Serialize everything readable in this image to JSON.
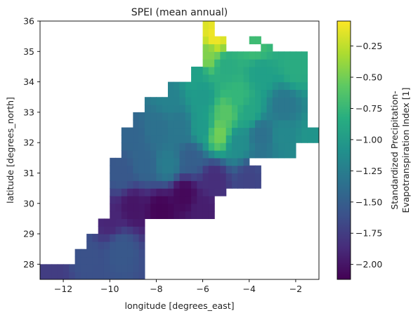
{
  "chart_data": {
    "type": "heatmap",
    "title": "SPEI (mean annual)",
    "xlabel": "longitude [degrees_east]",
    "ylabel": "latitude [degrees_north]",
    "colorbar_label_line1": "Standardized Precipitation-",
    "colorbar_label_line2": "Evapotranspiration Index [1]",
    "colormap": "viridis",
    "xlim": [
      -13,
      -1
    ],
    "ylim": [
      27.5,
      36
    ],
    "clim": [
      -2.12,
      -0.05
    ],
    "xticks": [
      -12,
      -10,
      -8,
      -6,
      -4,
      -2
    ],
    "xtick_labels": [
      "−12",
      "−10",
      "−8",
      "−6",
      "−4",
      "−2"
    ],
    "yticks": [
      28,
      29,
      30,
      31,
      32,
      33,
      34,
      35,
      36
    ],
    "ytick_labels": [
      "28",
      "29",
      "30",
      "31",
      "32",
      "33",
      "34",
      "35",
      "36"
    ],
    "cticks": [
      -2.0,
      -1.75,
      -1.5,
      -1.25,
      -1.0,
      -0.75,
      -0.5,
      -0.25
    ],
    "ctick_labels": [
      "−2.00",
      "−1.75",
      "−1.50",
      "−1.25",
      "−1.00",
      "−0.75",
      "−0.50",
      "−0.25"
    ],
    "grid": {
      "lon_start": -13.0,
      "lat_start": 27.5,
      "step": 0.25,
      "rows": [
        {
          "lat0": 27.5,
          "lon_ranges": [
            [
              -13.0,
              -8.5
            ]
          ]
        },
        {
          "lat0": 27.75,
          "lon_ranges": [
            [
              -13.0,
              -8.5
            ]
          ]
        },
        {
          "lat0": 28.0,
          "lon_ranges": [
            [
              -11.5,
              -8.5
            ]
          ]
        },
        {
          "lat0": 28.25,
          "lon_ranges": [
            [
              -11.5,
              -8.5
            ]
          ]
        },
        {
          "lat0": 28.5,
          "lon_ranges": [
            [
              -11.0,
              -8.5
            ]
          ]
        },
        {
          "lat0": 28.75,
          "lon_ranges": [
            [
              -11.0,
              -8.5
            ]
          ]
        },
        {
          "lat0": 29.0,
          "lon_ranges": [
            [
              -10.5,
              -8.5
            ]
          ]
        },
        {
          "lat0": 29.25,
          "lon_ranges": [
            [
              -10.5,
              -8.5
            ]
          ]
        },
        {
          "lat0": 29.5,
          "lon_ranges": [
            [
              -10.0,
              -5.5
            ]
          ]
        },
        {
          "lat0": 29.75,
          "lon_ranges": [
            [
              -10.0,
              -5.5
            ]
          ]
        },
        {
          "lat0": 30.0,
          "lon_ranges": [
            [
              -10.0,
              -5.5
            ]
          ]
        },
        {
          "lat0": 30.25,
          "lon_ranges": [
            [
              -10.0,
              -5.0
            ]
          ]
        },
        {
          "lat0": 30.5,
          "lon_ranges": [
            [
              -10.0,
              -3.5
            ]
          ]
        },
        {
          "lat0": 30.75,
          "lon_ranges": [
            [
              -10.0,
              -3.5
            ]
          ]
        },
        {
          "lat0": 31.0,
          "lon_ranges": [
            [
              -10.0,
              -3.5
            ]
          ]
        },
        {
          "lat0": 31.25,
          "lon_ranges": [
            [
              -10.0,
              -4.0
            ]
          ]
        },
        {
          "lat0": 31.5,
          "lon_ranges": [
            [
              -9.5,
              -2.0
            ]
          ]
        },
        {
          "lat0": 31.75,
          "lon_ranges": [
            [
              -9.5,
              -2.0
            ]
          ]
        },
        {
          "lat0": 32.0,
          "lon_ranges": [
            [
              -9.5,
              -1.0
            ]
          ]
        },
        {
          "lat0": 32.25,
          "lon_ranges": [
            [
              -9.5,
              -1.0
            ]
          ]
        },
        {
          "lat0": 32.5,
          "lon_ranges": [
            [
              -9.0,
              -1.5
            ]
          ]
        },
        {
          "lat0": 32.75,
          "lon_ranges": [
            [
              -9.0,
              -1.5
            ]
          ]
        },
        {
          "lat0": 33.0,
          "lon_ranges": [
            [
              -8.5,
              -1.5
            ]
          ]
        },
        {
          "lat0": 33.25,
          "lon_ranges": [
            [
              -8.5,
              -1.5
            ]
          ]
        },
        {
          "lat0": 33.5,
          "lon_ranges": [
            [
              -7.5,
              -1.5
            ]
          ]
        },
        {
          "lat0": 33.75,
          "lon_ranges": [
            [
              -7.5,
              -1.5
            ]
          ]
        },
        {
          "lat0": 34.0,
          "lon_ranges": [
            [
              -6.5,
              -1.5
            ]
          ]
        },
        {
          "lat0": 34.25,
          "lon_ranges": [
            [
              -6.5,
              -1.5
            ]
          ]
        },
        {
          "lat0": 34.5,
          "lon_ranges": [
            [
              -6.0,
              -1.5
            ]
          ]
        },
        {
          "lat0": 34.75,
          "lon_ranges": [
            [
              -6.0,
              -1.5
            ]
          ]
        },
        {
          "lat0": 35.0,
          "lon_ranges": [
            [
              -6.0,
              -5.0
            ],
            [
              -3.5,
              -3.0
            ]
          ]
        },
        {
          "lat0": 35.25,
          "lon_ranges": [
            [
              -6.0,
              -5.0
            ],
            [
              -4.0,
              -3.5
            ]
          ]
        },
        {
          "lat0": 35.5,
          "lon_ranges": [
            [
              -6.0,
              -5.5
            ]
          ]
        },
        {
          "lat0": 35.75,
          "lon_ranges": [
            [
              -6.0,
              -5.5
            ]
          ]
        }
      ],
      "value_anchors": [
        {
          "lon": -12.5,
          "lat": 27.75,
          "v": -1.75
        },
        {
          "lon": -11.0,
          "lat": 28.25,
          "v": -1.6
        },
        {
          "lon": -9.5,
          "lat": 28.5,
          "v": -1.55
        },
        {
          "lon": -10.0,
          "lat": 29.5,
          "v": -1.9
        },
        {
          "lon": -9.0,
          "lat": 29.9,
          "v": -2.0
        },
        {
          "lon": -7.8,
          "lat": 29.8,
          "v": -2.1
        },
        {
          "lon": -6.8,
          "lat": 30.3,
          "v": -2.08
        },
        {
          "lon": -6.0,
          "lat": 29.8,
          "v": -1.95
        },
        {
          "lon": -5.5,
          "lat": 30.8,
          "v": -1.85
        },
        {
          "lon": -4.0,
          "lat": 30.8,
          "v": -1.7
        },
        {
          "lon": -9.5,
          "lat": 31.0,
          "v": -1.55
        },
        {
          "lon": -8.5,
          "lat": 31.3,
          "v": -1.45
        },
        {
          "lon": -7.5,
          "lat": 31.3,
          "v": -1.25
        },
        {
          "lon": -6.5,
          "lat": 31.5,
          "v": -1.5
        },
        {
          "lon": -9.0,
          "lat": 32.3,
          "v": -1.45
        },
        {
          "lon": -8.0,
          "lat": 32.5,
          "v": -1.35
        },
        {
          "lon": -7.0,
          "lat": 32.5,
          "v": -1.3
        },
        {
          "lon": -6.0,
          "lat": 32.5,
          "v": -1.0
        },
        {
          "lon": -5.3,
          "lat": 32.3,
          "v": -0.5
        },
        {
          "lon": -4.5,
          "lat": 32.0,
          "v": -1.1
        },
        {
          "lon": -3.5,
          "lat": 32.3,
          "v": -1.35
        },
        {
          "lon": -2.5,
          "lat": 32.3,
          "v": -1.15
        },
        {
          "lon": -1.3,
          "lat": 32.2,
          "v": -1.05
        },
        {
          "lon": -5.0,
          "lat": 33.0,
          "v": -0.6
        },
        {
          "lon": -4.0,
          "lat": 33.0,
          "v": -0.9
        },
        {
          "lon": -2.5,
          "lat": 33.2,
          "v": -1.3
        },
        {
          "lon": -7.5,
          "lat": 33.5,
          "v": -1.2
        },
        {
          "lon": -6.0,
          "lat": 33.5,
          "v": -1.0
        },
        {
          "lon": -4.5,
          "lat": 33.5,
          "v": -0.75
        },
        {
          "lon": -6.3,
          "lat": 34.3,
          "v": -0.95
        },
        {
          "lon": -5.0,
          "lat": 34.5,
          "v": -0.85
        },
        {
          "lon": -3.5,
          "lat": 34.3,
          "v": -0.95
        },
        {
          "lon": -2.0,
          "lat": 34.5,
          "v": -0.85
        },
        {
          "lon": -5.8,
          "lat": 34.9,
          "v": -0.45
        },
        {
          "lon": -5.5,
          "lat": 35.5,
          "v": -0.1
        },
        {
          "lon": -3.7,
          "lat": 35.2,
          "v": -0.7
        }
      ]
    }
  }
}
